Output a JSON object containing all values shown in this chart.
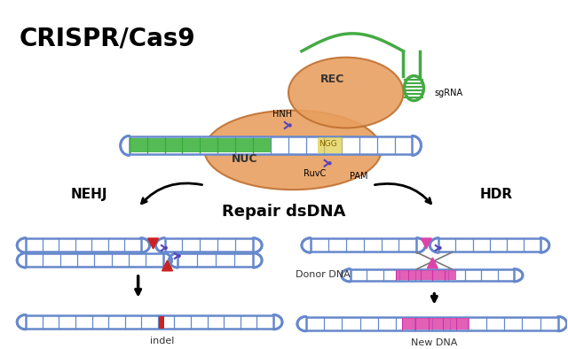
{
  "title": "CRISPR/Cas9",
  "bg_color": "#ffffff",
  "title_color": "#000000",
  "title_fontsize": 20,
  "dna_color": "#6688cc",
  "dna_stripe_color": "#4466aa",
  "green_color": "#44aa44",
  "orange_color": "#e8a060",
  "orange_dark": "#d08040",
  "pink_color": "#dd44aa",
  "red_color": "#cc2222",
  "arrow_color": "#111111",
  "label_nehj": "NEHJ",
  "label_hdr": "HDR",
  "label_repair": "Repair dsDNA",
  "label_indel": "indel",
  "label_newdna": "New DNA",
  "label_donor": "Donor DNA",
  "label_rec": "REC",
  "label_nuc": "NUC",
  "label_hnh": "HNH",
  "label_ruvc": "RuvC",
  "label_pam": "PAM",
  "label_ngg": "NGG",
  "label_sgrna": "sgRNA"
}
